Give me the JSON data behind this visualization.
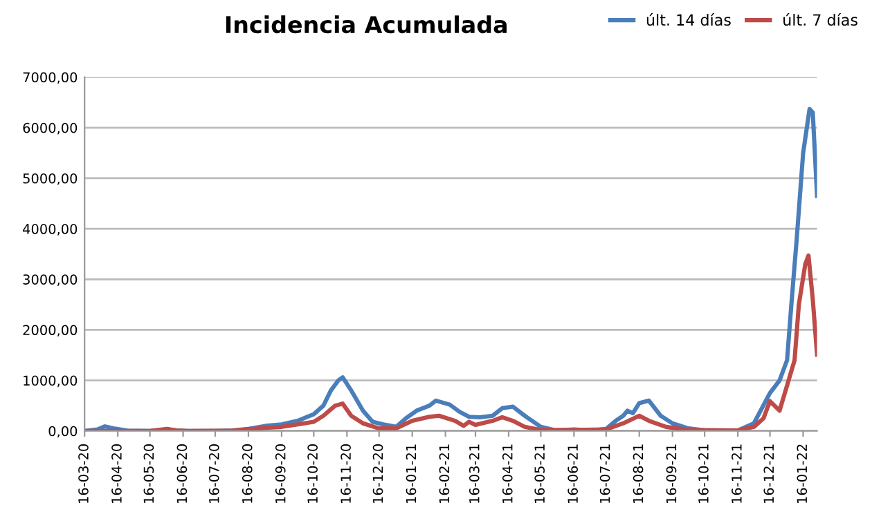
{
  "chart_data": {
    "type": "line",
    "title": "Incidencia Acumulada",
    "legend": "top right",
    "grid": "y",
    "xlim": [
      "2020-03-16",
      "2022-01-29"
    ],
    "xticks": [
      {
        "value": "2020-03-16",
        "label": "16-03-20"
      },
      {
        "value": "2020-04-16",
        "label": "16-04-20"
      },
      {
        "value": "2020-05-16",
        "label": "16-05-20"
      },
      {
        "value": "2020-06-16",
        "label": "16-06-20"
      },
      {
        "value": "2020-07-16",
        "label": "16-07-20"
      },
      {
        "value": "2020-08-16",
        "label": "16-08-20"
      },
      {
        "value": "2020-09-16",
        "label": "16-09-20"
      },
      {
        "value": "2020-10-16",
        "label": "16-10-20"
      },
      {
        "value": "2020-11-16",
        "label": "16-11-20"
      },
      {
        "value": "2020-12-16",
        "label": "16-12-20"
      },
      {
        "value": "2021-01-16",
        "label": "16-01-21"
      },
      {
        "value": "2021-02-16",
        "label": "16-02-21"
      },
      {
        "value": "2021-03-16",
        "label": "16-03-21"
      },
      {
        "value": "2021-04-16",
        "label": "16-04-21"
      },
      {
        "value": "2021-05-16",
        "label": "16-05-21"
      },
      {
        "value": "2021-06-16",
        "label": "16-06-21"
      },
      {
        "value": "2021-07-16",
        "label": "16-07-21"
      },
      {
        "value": "2021-08-16",
        "label": "16-08-21"
      },
      {
        "value": "2021-09-16",
        "label": "16-09-21"
      },
      {
        "value": "2021-10-16",
        "label": "16-10-21"
      },
      {
        "value": "2021-11-16",
        "label": "16-11-21"
      },
      {
        "value": "2021-12-16",
        "label": "16-12-21"
      },
      {
        "value": "2022-01-16",
        "label": "16-01-22"
      }
    ],
    "ylim": [
      0,
      7000
    ],
    "yticks": [
      {
        "value": 0,
        "label": "0,00"
      },
      {
        "value": 1000,
        "label": "1000,00"
      },
      {
        "value": 2000,
        "label": "2000,00"
      },
      {
        "value": 3000,
        "label": "3000,00"
      },
      {
        "value": 4000,
        "label": "4000,00"
      },
      {
        "value": 5000,
        "label": "5000,00"
      },
      {
        "value": 6000,
        "label": "6000,00"
      },
      {
        "value": 7000,
        "label": "7000,00"
      }
    ],
    "series": [
      {
        "name": "últ. 14 días",
        "color": "#4a7ebb",
        "x": [
          "2020-03-16",
          "2020-03-28",
          "2020-04-04",
          "2020-04-12",
          "2020-04-25",
          "2020-05-16",
          "2020-06-01",
          "2020-06-10",
          "2020-06-20",
          "2020-07-16",
          "2020-08-01",
          "2020-08-16",
          "2020-09-01",
          "2020-09-16",
          "2020-10-01",
          "2020-10-10",
          "2020-10-16",
          "2020-10-25",
          "2020-11-01",
          "2020-11-08",
          "2020-11-12",
          "2020-11-20",
          "2020-12-01",
          "2020-12-10",
          "2020-12-20",
          "2021-01-01",
          "2021-01-10",
          "2021-01-20",
          "2021-02-01",
          "2021-02-07",
          "2021-02-20",
          "2021-03-01",
          "2021-03-10",
          "2021-03-20",
          "2021-04-01",
          "2021-04-10",
          "2021-04-20",
          "2021-05-01",
          "2021-05-16",
          "2021-05-30",
          "2021-06-16",
          "2021-07-01",
          "2021-07-16",
          "2021-07-25",
          "2021-08-01",
          "2021-08-05",
          "2021-08-10",
          "2021-08-16",
          "2021-08-25",
          "2021-09-05",
          "2021-09-16",
          "2021-10-01",
          "2021-10-16",
          "2021-11-16",
          "2021-12-01",
          "2021-12-16",
          "2021-12-25",
          "2022-01-01",
          "2022-01-05",
          "2022-01-10",
          "2022-01-16",
          "2022-01-22",
          "2022-01-25",
          "2022-01-29"
        ],
        "values": [
          0,
          30,
          90,
          50,
          5,
          0,
          30,
          10,
          0,
          0,
          10,
          40,
          100,
          130,
          200,
          280,
          330,
          500,
          800,
          1000,
          1060,
          800,
          400,
          180,
          130,
          80,
          250,
          400,
          500,
          600,
          520,
          380,
          280,
          270,
          300,
          450,
          480,
          300,
          80,
          10,
          30,
          10,
          40,
          200,
          300,
          400,
          350,
          550,
          600,
          300,
          150,
          50,
          10,
          10,
          150,
          750,
          1000,
          1400,
          2500,
          3800,
          5500,
          6370,
          6300,
          4650
        ]
      },
      {
        "name": "últ. 7 días",
        "color": "#be4b48",
        "x": [
          "2020-03-16",
          "2020-05-16",
          "2020-06-01",
          "2020-06-10",
          "2020-06-20",
          "2020-08-01",
          "2020-09-01",
          "2020-09-16",
          "2020-10-01",
          "2020-10-16",
          "2020-10-25",
          "2020-11-05",
          "2020-11-12",
          "2020-11-20",
          "2020-12-01",
          "2020-12-16",
          "2021-01-01",
          "2021-01-16",
          "2021-02-01",
          "2021-02-10",
          "2021-02-25",
          "2021-03-05",
          "2021-03-10",
          "2021-03-16",
          "2021-04-01",
          "2021-04-10",
          "2021-04-20",
          "2021-05-01",
          "2021-05-16",
          "2021-06-16",
          "2021-07-16",
          "2021-08-01",
          "2021-08-16",
          "2021-08-25",
          "2021-09-10",
          "2021-10-01",
          "2021-11-16",
          "2021-12-01",
          "2021-12-10",
          "2021-12-16",
          "2021-12-25",
          "2022-01-01",
          "2022-01-08",
          "2022-01-12",
          "2022-01-18",
          "2022-01-21",
          "2022-01-25",
          "2022-01-29"
        ],
        "values": [
          0,
          0,
          40,
          10,
          0,
          5,
          60,
          80,
          130,
          180,
          300,
          500,
          540,
          300,
          150,
          50,
          50,
          200,
          280,
          300,
          200,
          100,
          180,
          120,
          200,
          270,
          200,
          80,
          20,
          20,
          30,
          150,
          300,
          200,
          80,
          20,
          10,
          80,
          250,
          590,
          400,
          900,
          1400,
          2500,
          3300,
          3470,
          2600,
          1510
        ]
      }
    ]
  }
}
